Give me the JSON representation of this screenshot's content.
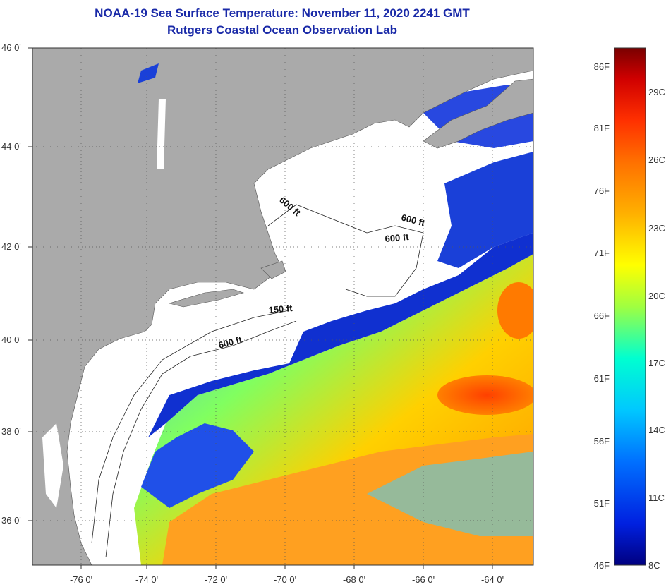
{
  "header": {
    "title": "NOAA-19 Sea Surface Temperature:  November 11, 2020 2241 GMT",
    "subtitle": "Rutgers Coastal Ocean Observation Lab"
  },
  "axes": {
    "lat_labels": [
      "46 0'",
      "44 0'",
      "42 0'",
      "40 0'",
      "38 0'",
      "36 0'"
    ],
    "lon_labels": [
      "-76 0'",
      "-74 0'",
      "-72 0'",
      "-70 0'",
      "-68 0'",
      "-66 0'",
      "-64 0'"
    ]
  },
  "contours": {
    "labels": [
      "600 ft",
      "600 ft",
      "600 ft",
      "150 ft",
      "600 ft"
    ]
  },
  "colorbar": {
    "fahrenheit_labels": [
      "86F",
      "81F",
      "76F",
      "71F",
      "66F",
      "61F",
      "56F",
      "51F",
      "46F"
    ],
    "celsius_labels": [
      "29C",
      "26C",
      "23C",
      "20C",
      "17C",
      "14C",
      "11C",
      "8C"
    ],
    "stops": [
      "#7a0000",
      "#d00000",
      "#ff3000",
      "#ff7000",
      "#ffb000",
      "#ffff00",
      "#a0ff40",
      "#00ffd0",
      "#00c8ff",
      "#0070ff",
      "#0020e0",
      "#000080"
    ]
  },
  "colors": {
    "land": "#aaaaaa",
    "cloud": "#ffffff",
    "title": "#1a2aa8"
  }
}
